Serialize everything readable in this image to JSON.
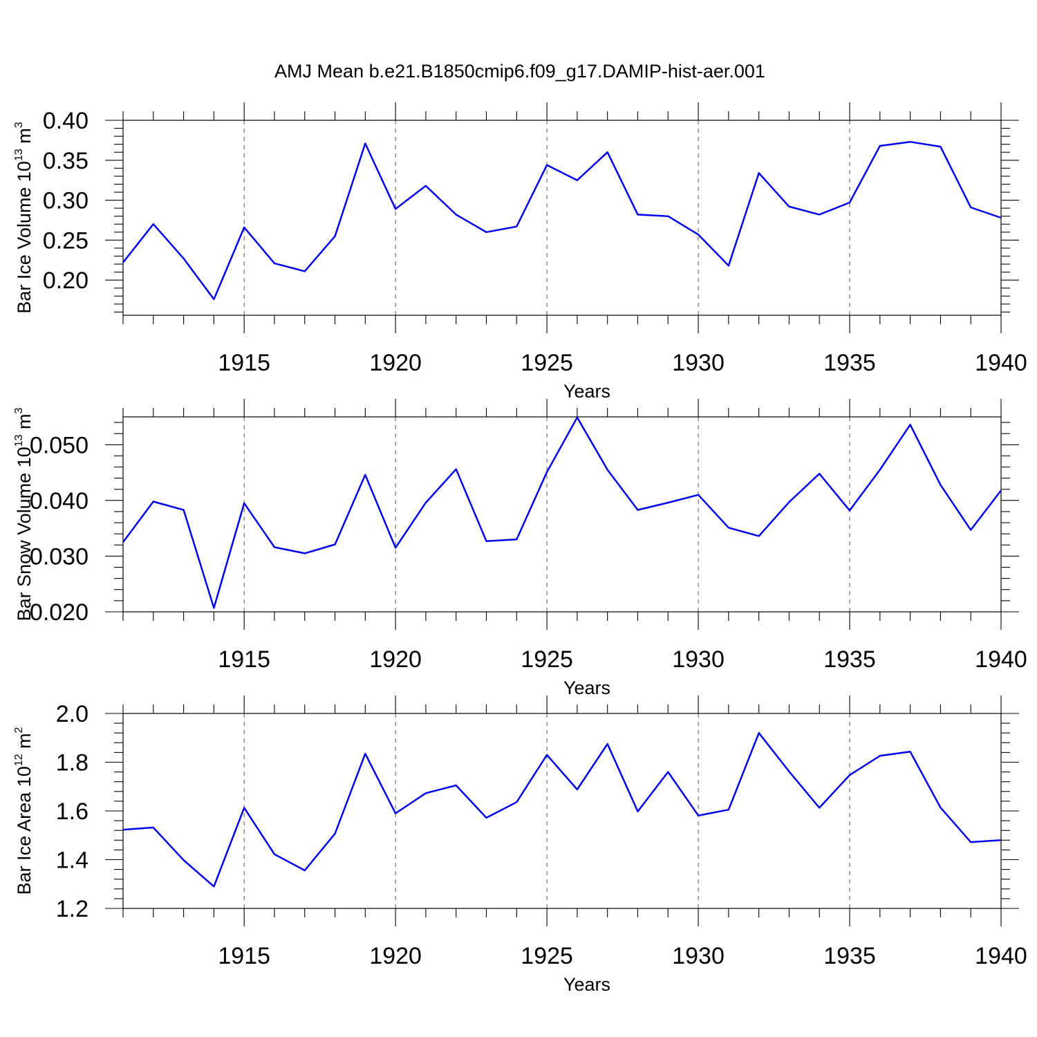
{
  "figure": {
    "title": "AMJ Mean b.e21.B1850cmip6.f09_g17.DAMIP-hist-aer.001"
  },
  "chart_data": [
    {
      "type": "line",
      "title": "",
      "xlabel": "Years",
      "ylabel": {
        "main": "Bar Ice Volume 10",
        "exp": "13",
        "unit": " m",
        "unit_exp": "3"
      },
      "xlim": [
        1911,
        1940
      ],
      "ylim": [
        0.156,
        0.4
      ],
      "xticks": [
        1915,
        1920,
        1925,
        1930,
        1935,
        1940
      ],
      "yticks": [
        0.2,
        0.25,
        0.3,
        0.35,
        0.4
      ],
      "ytick_labels": [
        "0.20",
        "0.25",
        "0.30",
        "0.35",
        "0.40"
      ],
      "yminor_step": 0.01,
      "grid": "x-dashed",
      "color": "#0000ee",
      "series": [
        {
          "x": [
            1911,
            1912,
            1913,
            1914,
            1915,
            1916,
            1917,
            1918,
            1919,
            1920,
            1921,
            1922,
            1923,
            1924,
            1925,
            1926,
            1927,
            1928,
            1929,
            1930,
            1931,
            1932,
            1933,
            1934,
            1935,
            1936,
            1937,
            1938,
            1939,
            1940
          ],
          "values": [
            0.222,
            0.27,
            0.227,
            0.176,
            0.266,
            0.221,
            0.211,
            0.255,
            0.371,
            0.289,
            0.318,
            0.282,
            0.26,
            0.267,
            0.344,
            0.325,
            0.36,
            0.282,
            0.28,
            0.257,
            0.218,
            0.334,
            0.292,
            0.282,
            0.297,
            0.368,
            0.373,
            0.367,
            0.291,
            0.278
          ]
        }
      ]
    },
    {
      "type": "line",
      "title": "",
      "xlabel": "Years",
      "ylabel": {
        "main": "Bar Snow Volume 10",
        "exp": "13",
        "unit": " m",
        "unit_exp": "3"
      },
      "xlim": [
        1911,
        1940
      ],
      "ylim": [
        0.02,
        0.055
      ],
      "xticks": [
        1915,
        1920,
        1925,
        1930,
        1935,
        1940
      ],
      "yticks": [
        0.02,
        0.03,
        0.04,
        0.05
      ],
      "ytick_labels": [
        "0.020",
        "0.030",
        "0.040",
        "0.050"
      ],
      "yminor_step": 0.002,
      "grid": "x-dashed",
      "color": "#0000ee",
      "series": [
        {
          "x": [
            1911,
            1912,
            1913,
            1914,
            1915,
            1916,
            1917,
            1918,
            1919,
            1920,
            1921,
            1922,
            1923,
            1924,
            1925,
            1926,
            1927,
            1928,
            1929,
            1930,
            1931,
            1932,
            1933,
            1934,
            1935,
            1936,
            1937,
            1938,
            1939,
            1940
          ],
          "values": [
            0.0325,
            0.0398,
            0.0383,
            0.0207,
            0.0395,
            0.0316,
            0.0305,
            0.0321,
            0.0446,
            0.0315,
            0.0396,
            0.0456,
            0.0327,
            0.033,
            0.0451,
            0.0549,
            0.0455,
            0.0383,
            0.0396,
            0.041,
            0.0351,
            0.0336,
            0.0397,
            0.0448,
            0.0382,
            0.0455,
            0.0536,
            0.0428,
            0.0347,
            0.0418
          ]
        }
      ]
    },
    {
      "type": "line",
      "title": "",
      "xlabel": "Years",
      "ylabel": {
        "main": "Bar Ice Area 10",
        "exp": "12",
        "unit": " m",
        "unit_exp": "2"
      },
      "xlim": [
        1911,
        1940
      ],
      "ylim": [
        1.2,
        2.0
      ],
      "xticks": [
        1915,
        1920,
        1925,
        1930,
        1935,
        1940
      ],
      "yticks": [
        1.2,
        1.4,
        1.6,
        1.8,
        2.0
      ],
      "ytick_labels": [
        "1.2",
        "1.4",
        "1.6",
        "1.8",
        "2.0"
      ],
      "yminor_step": 0.04,
      "grid": "x-dashed",
      "color": "#0000ee",
      "series": [
        {
          "x": [
            1911,
            1912,
            1913,
            1914,
            1915,
            1916,
            1917,
            1918,
            1919,
            1920,
            1921,
            1922,
            1923,
            1924,
            1925,
            1926,
            1927,
            1928,
            1929,
            1930,
            1931,
            1932,
            1933,
            1934,
            1935,
            1936,
            1937,
            1938,
            1939,
            1940
          ],
          "values": [
            1.523,
            1.532,
            1.398,
            1.29,
            1.613,
            1.422,
            1.356,
            1.507,
            1.835,
            1.59,
            1.673,
            1.705,
            1.572,
            1.636,
            1.83,
            1.688,
            1.875,
            1.598,
            1.76,
            1.581,
            1.605,
            1.92,
            1.762,
            1.613,
            1.747,
            1.826,
            1.843,
            1.614,
            1.472,
            1.48
          ]
        }
      ]
    }
  ]
}
